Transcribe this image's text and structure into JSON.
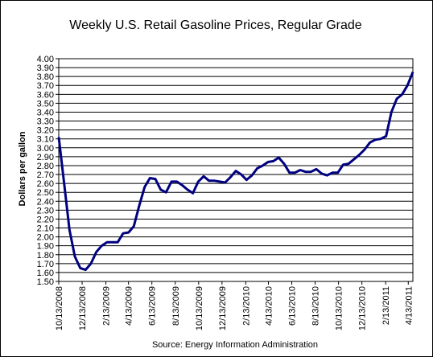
{
  "chart_data": {
    "type": "line",
    "title": "Weekly U.S. Retail Gasoline Prices, Regular Grade",
    "y_label": "Dollars per gallon",
    "source": "Source:  Energy Information Administration",
    "x": [
      "10/13/2008",
      "10/27/2008",
      "11/10/2008",
      "11/24/2008",
      "12/8/2008",
      "12/22/2008",
      "1/5/2009",
      "1/19/2009",
      "2/2/2009",
      "2/16/2009",
      "3/2/2009",
      "3/16/2009",
      "3/30/2009",
      "4/13/2009",
      "4/27/2009",
      "5/11/2009",
      "5/25/2009",
      "6/8/2009",
      "6/22/2009",
      "7/6/2009",
      "7/20/2009",
      "8/3/2009",
      "8/17/2009",
      "8/31/2009",
      "9/14/2009",
      "9/28/2009",
      "10/12/2009",
      "10/26/2009",
      "11/9/2009",
      "11/23/2009",
      "12/7/2009",
      "12/21/2009",
      "1/4/2010",
      "1/18/2010",
      "2/1/2010",
      "2/15/2010",
      "3/1/2010",
      "3/15/2010",
      "3/29/2010",
      "4/12/2010",
      "4/26/2010",
      "5/10/2010",
      "5/24/2010",
      "6/7/2010",
      "6/21/2010",
      "7/5/2010",
      "7/19/2010",
      "8/2/2010",
      "8/16/2010",
      "8/30/2010",
      "9/13/2010",
      "9/27/2010",
      "10/11/2010",
      "10/25/2010",
      "11/8/2010",
      "11/22/2010",
      "12/6/2010",
      "12/20/2010",
      "1/3/2011",
      "1/17/2011",
      "1/31/2011",
      "2/14/2011",
      "2/28/2011",
      "3/14/2011",
      "3/28/2011",
      "4/11/2011",
      "4/25/2011"
    ],
    "series": [
      {
        "name": "Regular Grade",
        "color": "#000080",
        "values": [
          3.12,
          2.6,
          2.08,
          1.78,
          1.65,
          1.63,
          1.7,
          1.83,
          1.9,
          1.94,
          1.94,
          1.94,
          2.04,
          2.05,
          2.12,
          2.35,
          2.56,
          2.66,
          2.65,
          2.53,
          2.5,
          2.62,
          2.62,
          2.58,
          2.53,
          2.49,
          2.62,
          2.68,
          2.63,
          2.63,
          2.62,
          2.61,
          2.67,
          2.74,
          2.7,
          2.64,
          2.69,
          2.77,
          2.8,
          2.84,
          2.85,
          2.89,
          2.82,
          2.72,
          2.72,
          2.75,
          2.73,
          2.73,
          2.76,
          2.71,
          2.69,
          2.72,
          2.72,
          2.81,
          2.82,
          2.87,
          2.92,
          2.98,
          3.06,
          3.09,
          3.1,
          3.13,
          3.4,
          3.55,
          3.6,
          3.7,
          3.85
        ]
      }
    ],
    "xlim": [
      "10/13/2008",
      "4/25/2011"
    ],
    "xticks": [
      "10/13/2008",
      "12/13/2008",
      "2/13/2009",
      "4/13/2009",
      "6/13/2009",
      "8/13/2009",
      "10/13/2009",
      "12/13/2009",
      "2/13/2010",
      "4/13/2010",
      "6/13/2010",
      "8/13/2010",
      "10/13/2010",
      "12/13/2010",
      "2/13/2011",
      "4/13/2011"
    ],
    "ylim": [
      1.5,
      4.0
    ],
    "yticks": [
      {
        "value": 1.5,
        "label": "1.50"
      },
      {
        "value": 1.6,
        "label": "1.60"
      },
      {
        "value": 1.7,
        "label": "1.70"
      },
      {
        "value": 1.8,
        "label": "1.80"
      },
      {
        "value": 1.9,
        "label": "1.90"
      },
      {
        "value": 2.0,
        "label": "2.00"
      },
      {
        "value": 2.1,
        "label": "2.10"
      },
      {
        "value": 2.2,
        "label": "2.20"
      },
      {
        "value": 2.3,
        "label": "2.30"
      },
      {
        "value": 2.4,
        "label": "2.40"
      },
      {
        "value": 2.5,
        "label": "2.50"
      },
      {
        "value": 2.6,
        "label": "2.60"
      },
      {
        "value": 2.7,
        "label": "2.70"
      },
      {
        "value": 2.8,
        "label": "2.80"
      },
      {
        "value": 2.9,
        "label": "2.90"
      },
      {
        "value": 3.0,
        "label": "3.00"
      },
      {
        "value": 3.1,
        "label": "3.10"
      },
      {
        "value": 3.2,
        "label": "3.20"
      },
      {
        "value": 3.3,
        "label": "3.30"
      },
      {
        "value": 3.4,
        "label": "3.40"
      },
      {
        "value": 3.5,
        "label": "3.50"
      },
      {
        "value": 3.6,
        "label": "3.60"
      },
      {
        "value": 3.7,
        "label": "3.70"
      },
      {
        "value": 3.8,
        "label": "3.80"
      },
      {
        "value": 3.9,
        "label": "3.90"
      },
      {
        "value": 4.0,
        "label": "4.00"
      }
    ],
    "grid": true
  }
}
